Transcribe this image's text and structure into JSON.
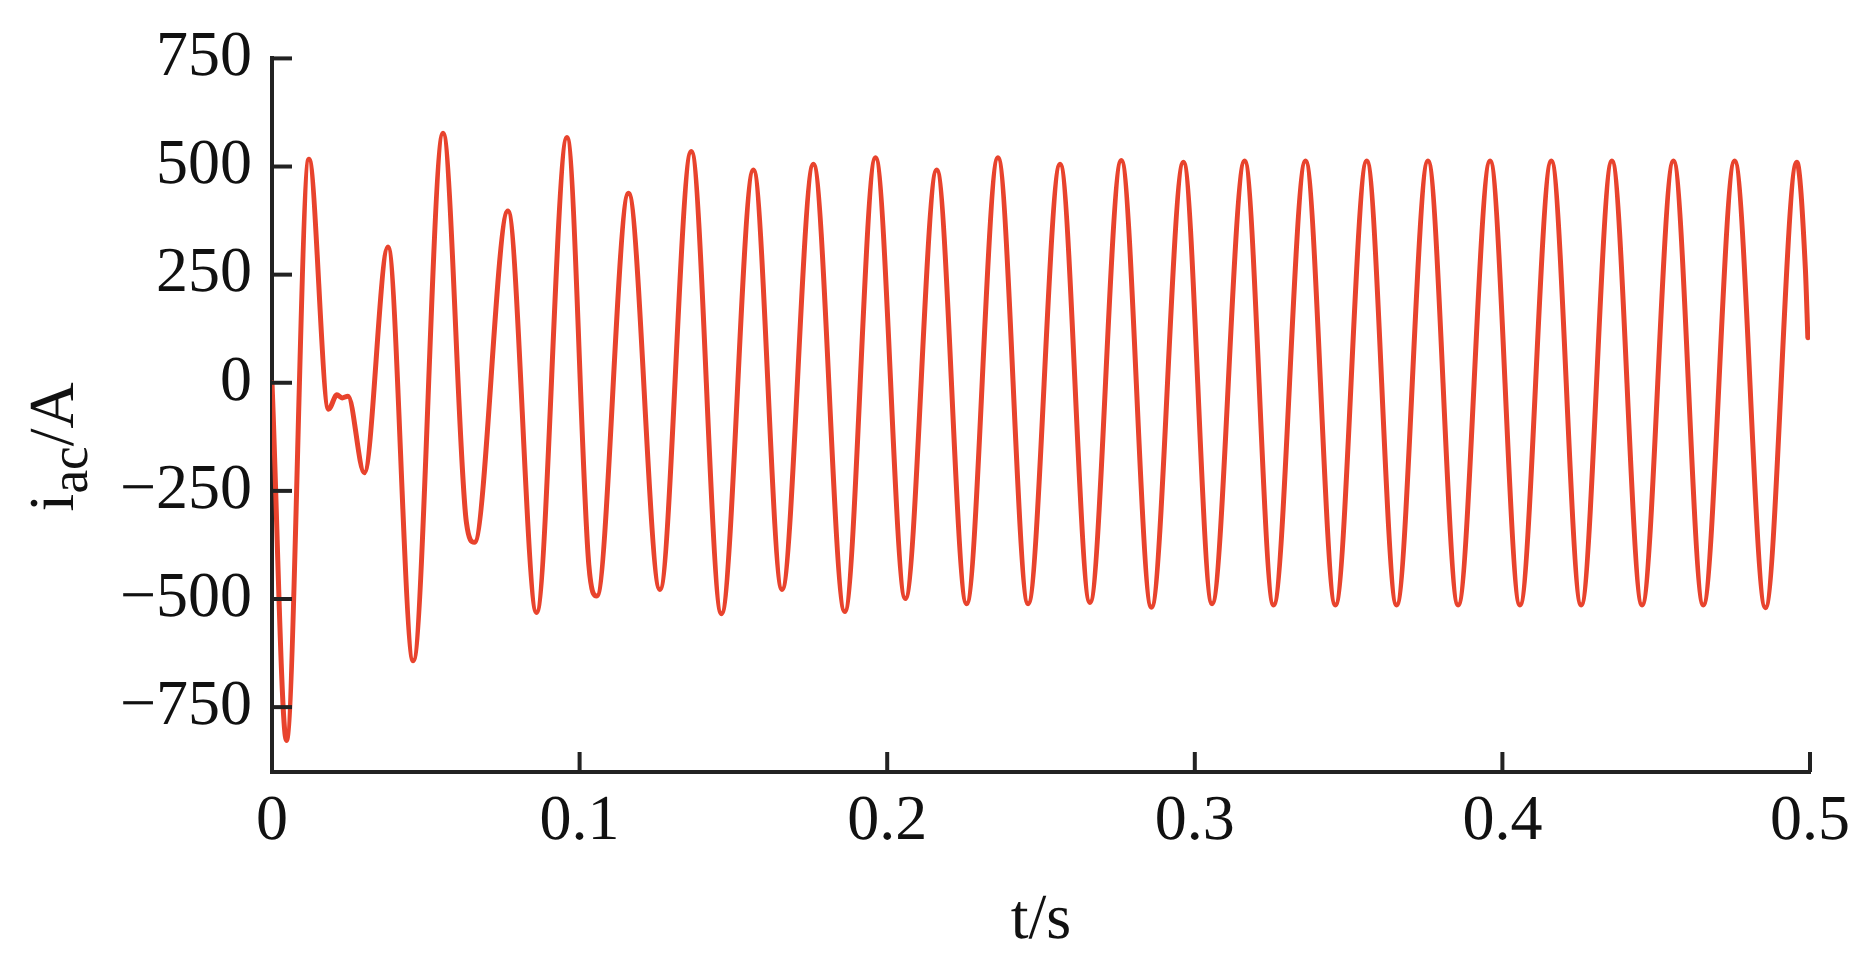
{
  "chart_data": {
    "type": "line",
    "xlabel": "t/s",
    "ylabel": "i$_{ac}$/A",
    "xlim": [
      0,
      0.5
    ],
    "xticks": [
      0,
      0.1,
      0.2,
      0.3,
      0.4,
      0.5
    ],
    "ylim": [
      -900,
      750
    ],
    "yticks": [
      -750,
      -500,
      -250,
      0,
      250,
      500,
      750
    ],
    "grid": false,
    "legend": false,
    "marker": "none",
    "line_style": "solid",
    "x": [
      0,
      0.0047,
      0.012,
      0.0184,
      0.0211,
      0.0228,
      0.0247,
      0.03,
      0.0377,
      0.0459,
      0.0556,
      0.0632,
      0.0658,
      0.0767,
      0.086,
      0.0959,
      0.103,
      0.1056,
      0.1159,
      0.1261,
      0.1363,
      0.1461,
      0.1565,
      0.1658,
      0.176,
      0.1862,
      0.1962,
      0.2059,
      0.2161,
      0.2258,
      0.236,
      0.2458,
      0.2562,
      0.2659,
      0.2761,
      0.2859,
      0.2963,
      0.3056,
      0.3162,
      0.3256,
      0.336,
      0.3457,
      0.3559,
      0.3656,
      0.3758,
      0.3856,
      0.396,
      0.4057,
      0.4159,
      0.4256,
      0.4356,
      0.4454,
      0.4556,
      0.4653,
      0.4755,
      0.4855,
      0.4957,
      0.4985,
      0.4993
    ],
    "series": [
      {
        "color": "#e8432d",
        "values": [
          0,
          -827,
          517,
          -61,
          -28,
          -35,
          -31,
          -208,
          314,
          -643,
          577,
          -323,
          -369,
          397,
          -531,
          567,
          -421,
          -493,
          438,
          -478,
          535,
          -534,
          492,
          -478,
          505,
          -529,
          520,
          -499,
          492,
          -511,
          520,
          -511,
          505,
          -508,
          514,
          -519,
          510,
          -511,
          513,
          -514,
          513,
          -514,
          513,
          -514,
          513,
          -514,
          513,
          -514,
          513,
          -514,
          513,
          -514,
          513,
          -514,
          513,
          -520,
          510,
          263,
          104
        ]
      }
    ]
  }
}
